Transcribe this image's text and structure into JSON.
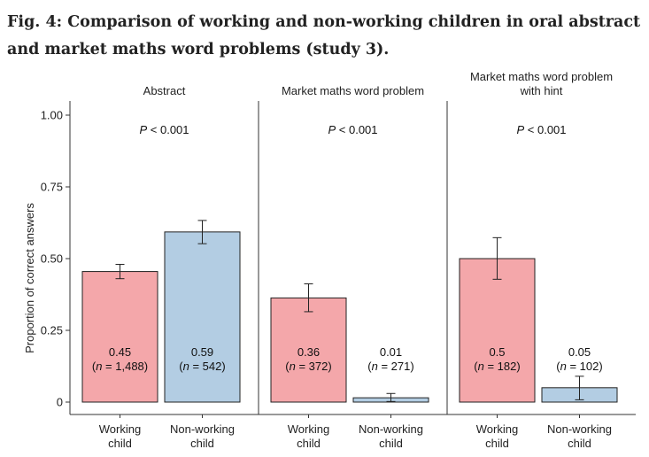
{
  "figure": {
    "label": "Fig. 4:",
    "title": "Comparison of working and non-working children in oral abstract and market maths word problems (study 3)."
  },
  "colors": {
    "working": "#f4a7aa",
    "non_working": "#b3cde3",
    "axis": "#333333"
  },
  "chart_data": {
    "type": "bar",
    "ylabel": "Proportion of correct answers",
    "ylim": [
      0,
      1
    ],
    "y_ticks": [
      "1.00",
      "0.75",
      "0.50",
      "0.25",
      "0"
    ],
    "y_tick_values": [
      1.0,
      0.75,
      0.5,
      0.25,
      0
    ],
    "panels": [
      {
        "title_lines": [
          "Abstract"
        ],
        "p_prefix": "P",
        "p_suffix": " < 0.001",
        "categories": [
          [
            "Working",
            "child"
          ],
          [
            "Non-working",
            "child"
          ]
        ],
        "bars": [
          {
            "group": "working",
            "value": 0.455,
            "err_low": 0.43,
            "err_high": 0.48,
            "label": "0.45",
            "n_label": "1,488"
          },
          {
            "group": "non_working",
            "value": 0.593,
            "err_low": 0.552,
            "err_high": 0.633,
            "label": "0.59",
            "n_label": "542"
          }
        ]
      },
      {
        "title_lines": [
          "Market maths word problem"
        ],
        "p_prefix": "P",
        "p_suffix": " < 0.001",
        "categories": [
          [
            "Working",
            "child"
          ],
          [
            "Non-working",
            "child"
          ]
        ],
        "bars": [
          {
            "group": "working",
            "value": 0.363,
            "err_low": 0.315,
            "err_high": 0.412,
            "label": "0.36",
            "n_label": "372"
          },
          {
            "group": "non_working",
            "value": 0.015,
            "err_low": 0.002,
            "err_high": 0.03,
            "label": "0.01",
            "n_label": "271"
          }
        ]
      },
      {
        "title_lines": [
          "Market maths word problem",
          "with hint"
        ],
        "p_prefix": "P",
        "p_suffix": " < 0.001",
        "categories": [
          [
            "Working",
            "child"
          ],
          [
            "Non-working",
            "child"
          ]
        ],
        "bars": [
          {
            "group": "working",
            "value": 0.5,
            "err_low": 0.428,
            "err_high": 0.573,
            "label": "0.5",
            "n_label": "182"
          },
          {
            "group": "non_working",
            "value": 0.05,
            "err_low": 0.008,
            "err_high": 0.09,
            "label": "0.05",
            "n_label": "102"
          }
        ]
      }
    ]
  }
}
